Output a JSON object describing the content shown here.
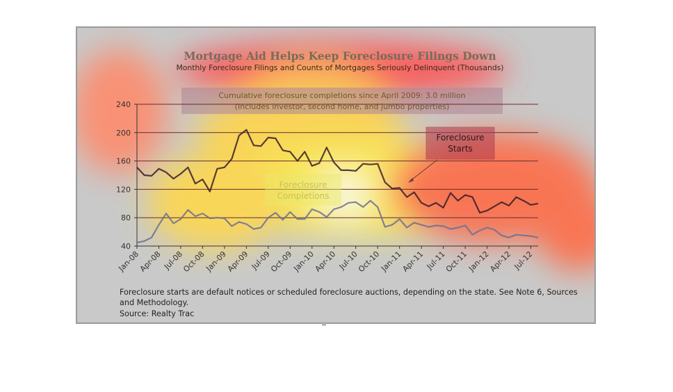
{
  "chart_data": {
    "type": "line",
    "title": "Mortgage Aid Helps Keep Foreclosure Filings Down",
    "subtitle": "Monthly Foreclosure Filings and Counts of Mortgages Seriously Delinquent (Thousands)",
    "ylim": [
      40,
      240
    ],
    "yticks": [
      "40",
      "80",
      "120",
      "160",
      "200",
      "240"
    ],
    "xlabels": [
      "Jan-08",
      "Apr-08",
      "Jul-08",
      "Oct-08",
      "Jan-09",
      "Apr-09",
      "Jul-09",
      "Oct-09",
      "Jan-10",
      "Apr-10",
      "Jul-10",
      "Oct-10",
      "Jan-11",
      "Apr-11",
      "Jul-11",
      "Oct-11",
      "Jan-12",
      "Apr-12",
      "Jul-12"
    ],
    "grid": true,
    "series": [
      {
        "name": "Foreclosure Starts",
        "color": "#3a1f2c",
        "values": [
          151,
          140,
          139,
          149,
          144,
          135,
          142,
          151,
          128,
          134,
          117,
          149,
          151,
          163,
          196,
          204,
          182,
          181,
          193,
          192,
          175,
          173,
          160,
          173,
          153,
          157,
          179,
          158,
          147,
          147,
          146,
          156,
          155,
          156,
          130,
          121,
          122,
          109,
          116,
          101,
          96,
          101,
          94,
          115,
          104,
          112,
          109,
          87,
          90,
          96,
          102,
          97,
          109,
          104,
          98,
          100
        ]
      },
      {
        "name": "Foreclosure Completions",
        "color": "#6d7090",
        "values": [
          45,
          47,
          52,
          70,
          86,
          72,
          78,
          91,
          82,
          86,
          79,
          80,
          79,
          68,
          74,
          71,
          64,
          66,
          80,
          87,
          77,
          88,
          78,
          78,
          92,
          88,
          81,
          92,
          95,
          101,
          102,
          95,
          104,
          95,
          67,
          70,
          78,
          66,
          73,
          70,
          67,
          69,
          68,
          64,
          66,
          69,
          56,
          62,
          66,
          63,
          55,
          52,
          56,
          55,
          54,
          52
        ]
      }
    ],
    "annotations": {
      "box_line1": "Cumulative foreclosure completions since April 2009: 3.0 million",
      "box_line2": "(Includes investor, second home, and jumbo properties)",
      "starts_line1": "Foreclosure",
      "starts_line2": "Starts",
      "completions_line1": "Foreclosure",
      "completions_line2": "Completions"
    },
    "footnote": {
      "line1": "Foreclosure starts are default notices or scheduled foreclosure auctions, depending on the state. See Note 6, Sources",
      "line2": "and Methodology.",
      "source": "Source: Realty Trac"
    },
    "colors": {
      "panel": "#c9c9c9",
      "heat_yellow": "#fff94a",
      "heat_red": "#ff5a3c",
      "annotation_box": "#b08a98",
      "starts_box": "#b03a4e"
    }
  }
}
